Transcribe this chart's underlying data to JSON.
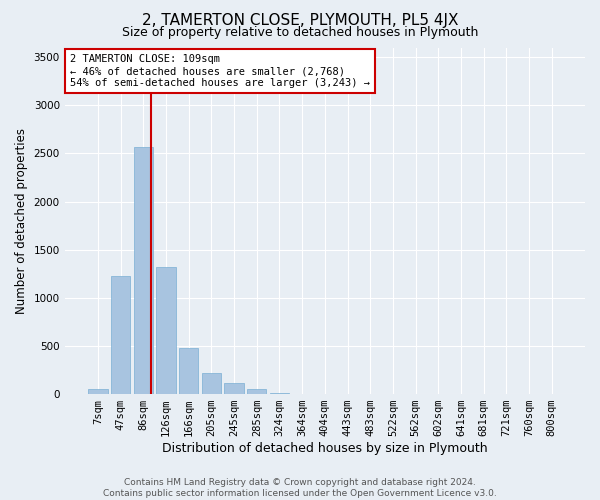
{
  "title": "2, TAMERTON CLOSE, PLYMOUTH, PL5 4JX",
  "subtitle": "Size of property relative to detached houses in Plymouth",
  "xlabel": "Distribution of detached houses by size in Plymouth",
  "ylabel": "Number of detached properties",
  "footer_line1": "Contains HM Land Registry data © Crown copyright and database right 2024.",
  "footer_line2": "Contains public sector information licensed under the Open Government Licence v3.0.",
  "bar_labels": [
    "7sqm",
    "47sqm",
    "86sqm",
    "126sqm",
    "166sqm",
    "205sqm",
    "245sqm",
    "285sqm",
    "324sqm",
    "364sqm",
    "404sqm",
    "443sqm",
    "483sqm",
    "522sqm",
    "562sqm",
    "602sqm",
    "641sqm",
    "681sqm",
    "721sqm",
    "760sqm",
    "800sqm"
  ],
  "bar_values": [
    50,
    1230,
    2570,
    1320,
    480,
    220,
    120,
    50,
    15,
    5,
    2,
    1,
    0,
    0,
    0,
    0,
    0,
    0,
    0,
    0,
    0
  ],
  "bar_color": "#a8c4e0",
  "bar_edge_color": "#7aafd4",
  "background_color": "#e8eef4",
  "grid_color": "#ffffff",
  "annotation_text": "2 TAMERTON CLOSE: 109sqm\n← 46% of detached houses are smaller (2,768)\n54% of semi-detached houses are larger (3,243) →",
  "vline_x": 2.35,
  "annotation_box_color": "#ffffff",
  "annotation_border_color": "#cc0000",
  "ylim": [
    0,
    3600
  ],
  "yticks": [
    0,
    500,
    1000,
    1500,
    2000,
    2500,
    3000,
    3500
  ],
  "title_fontsize": 11,
  "subtitle_fontsize": 9,
  "ylabel_fontsize": 8.5,
  "xlabel_fontsize": 9,
  "tick_fontsize": 7.5,
  "footer_fontsize": 6.5
}
